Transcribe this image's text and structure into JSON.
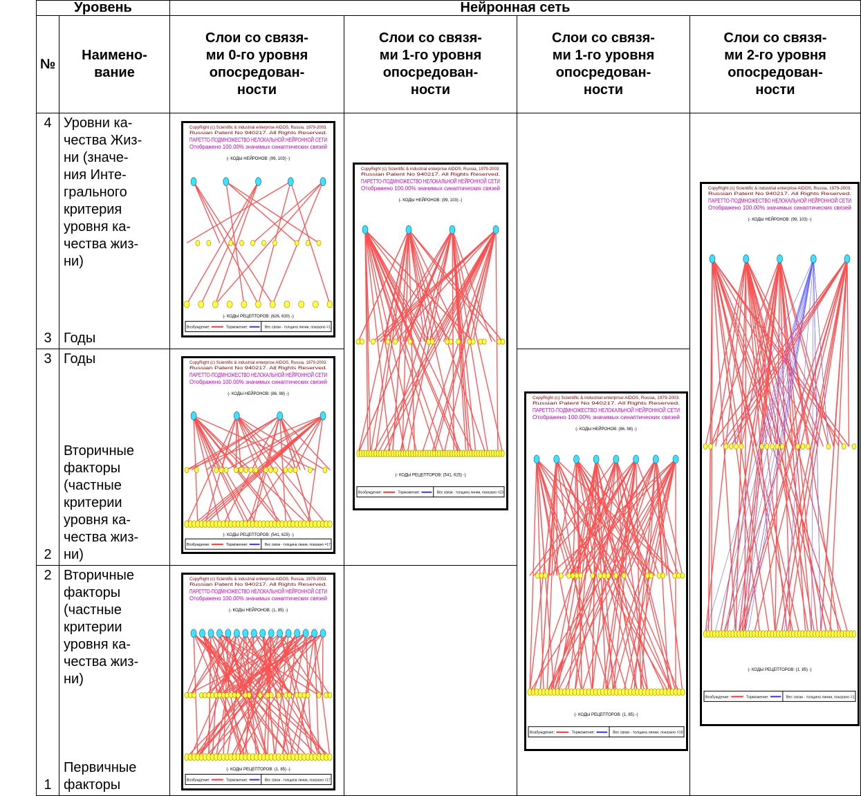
{
  "table": {
    "header": {
      "level": "Уровень",
      "network": "Нейронная сеть",
      "number": "№",
      "name": "Наимено-\nвание",
      "columns": [
        "Слои со связя-\nми 0-го уровня\nопосредован-\nности",
        "Слои со связя-\nми 1-го уровня\nопосредован-\nности",
        "Слои со связя-\nми 1-го уровня\nопосредован-\nности",
        "Слои со связя-\nми 2-го уровня\nопосредован-\nности"
      ]
    },
    "rows": [
      {
        "number_top": "4",
        "number_bottom": "3",
        "name_top": "Уровни ка-\nчества Жиз-\nни (значе-\nния Инте-\nгрального\nкритерия\nуровня ка-\nчества жиз-\nни)",
        "name_bottom": "Годы"
      },
      {
        "number_top": "3",
        "number_bottom": "2",
        "name_top": "Годы",
        "name_bottom": "Вторичные\nфакторы\n(частные\nкритерии\nуровня ка-\nчества жиз-\nни)"
      },
      {
        "number_top": "2",
        "number_bottom": "1",
        "name_top": "Вторичные\nфакторы\n(частные\nкритерии\nуровня ка-\nчества жиз-\nни)",
        "name_bottom": "Первичные\nфакторы"
      }
    ]
  },
  "diagrams": [
    {
      "copyright": "CopyRight (c) Scientific & industrial enterprise AIDOS, Russia, 1979-2003.",
      "patent": "Russian Patent No 940217. All Rights Reserved.",
      "title": "ПАРЕТТО-ПОДМНОЖЕСТВО НЕЛОКАЛЬНОЙ НЕЙРОННОЙ СЕТИ",
      "subtitle": "Отображено 100.00% значимых синаптических связей",
      "neurons": "(- КОДЫ НЕЙРОНОВ: (99, 103) -)",
      "receptors": "(- КОДЫ РЕЦЕПТОРОВ: (626, 630) -)",
      "excitation": "Возбуждение:",
      "inhibition": "Торможение:",
      "weight": "Вес связи - толщина линии, показано =1"
    },
    {
      "copyright": "CopyRight (c) Scientific & industrial enterprise AIDOS, Russia, 1979-2003.",
      "patent": "Russian Patent No 940217. All Rights Reserved.",
      "title": "ПАРЕТТО-ПОДМНОЖЕСТВО НЕЛОКАЛЬНОЙ НЕЙРОННОЙ СЕТИ",
      "subtitle": "Отображено 100.00% значимых синаптических связей",
      "neurons": "(- КОДЫ НЕЙРОНОВ: (86, 98) -)",
      "receptors": "(- КОДЫ РЕЦЕПТОРОВ: (541, 625) -)",
      "excitation": "Возбуждение:",
      "inhibition": "Торможение:",
      "weight": "Вес связи - толщина линии, показано =17"
    },
    {
      "copyright": "CopyRight (c) Scientific & industrial enterprise AIDOS, Russia, 1979-2003.",
      "patent": "Russian Patent No 940217. All Rights Reserved.",
      "title": "ПАРЕТТО-ПОДМНОЖЕСТВО НЕЛОКАЛЬНОЙ НЕЙРОННОЙ СЕТИ",
      "subtitle": "Отображено 100.00% значимых синаптических связей",
      "neurons": "(- КОДЫ НЕЙРОНОВ: (1, 85) -)",
      "receptors": "(- КОДЫ РЕЦЕПТОРОВ: (1, 85) -)",
      "excitation": "Возбуждение:",
      "inhibition": "Торможение:",
      "weight": "Вес связи - толщина линии, показано =17"
    },
    {
      "copyright": "CopyRight (c) Scientific & industrial enterprise AIDOS, Russia, 1979-2003.",
      "patent": "Russian Patent No 940217. All Rights Reserved.",
      "title": "ПАРЕТТО-ПОДМНОЖЕСТВО НЕЛОКАЛЬНОЙ НЕЙРОННОЙ СЕТИ",
      "subtitle": "Отображено 100.00% значимых синаптических связей",
      "neurons": "(- КОДЫ НЕЙРОНОВ: (99, 103) -)",
      "receptors": "(- КОДЫ РЕЦЕПТОРОВ: (541, 625) -)",
      "excitation": "Возбуждение:",
      "inhibition": "Торможение:",
      "weight": "Вес связи - толщина линии, показано =23"
    },
    {
      "copyright": "CopyRight (c) Scientific & industrial enterprise AIDOS, Russia, 1979-2003.",
      "patent": "Russian Patent No 940217. All Rights Reserved.",
      "title": "ПАРЕТТО-ПОДМНОЖЕСТВО НЕЛОКАЛЬНОЙ НЕЙРОННОЙ СЕТИ",
      "subtitle": "Отображено 100.00% значимых синаптических связей",
      "neurons": "(- КОДЫ НЕЙРОНОВ: (86, 98) -)",
      "receptors": "(- КОДЫ РЕЦЕПТОРОВ: (1, 85) -)",
      "excitation": "Возбуждение:",
      "inhibition": "Торможение:",
      "weight": "Вес связи - толщина линии, показано =19"
    },
    {
      "copyright": "CopyRight (c) Scientific & industrial enterprise AIDOS, Russia, 1979-2003.",
      "patent": "Russian Patent No 940217. All Rights Reserved.",
      "title": "ПАРЕТТО-ПОДМНОЖЕСТВО НЕЛОКАЛЬНОЙ НЕЙРОННОЙ СЕТИ",
      "subtitle": "Отображено 100.00% значимых синаптических связей",
      "neurons": "(- КОДЫ НЕЙРОНОВ: (99, 103) -)",
      "receptors": "(- КОДЫ РЕЦЕПТОРОВ: (1, 85) -)",
      "excitation": "Возбуждение:",
      "inhibition": "Торможение:",
      "weight": "Вес связи - толщина линии, показано =1"
    }
  ]
}
